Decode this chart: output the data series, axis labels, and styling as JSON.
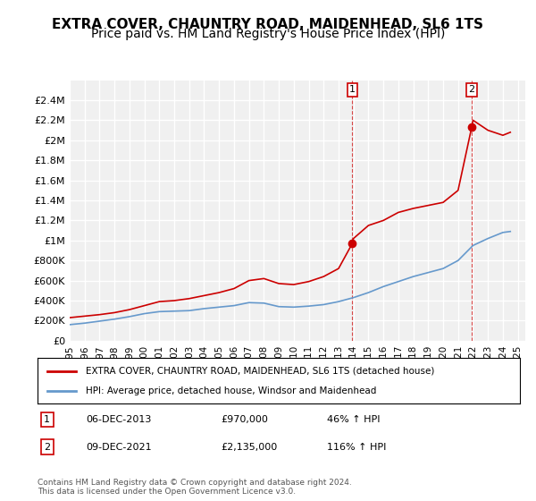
{
  "title": "EXTRA COVER, CHAUNTRY ROAD, MAIDENHEAD, SL6 1TS",
  "subtitle": "Price paid vs. HM Land Registry's House Price Index (HPI)",
  "title_fontsize": 11,
  "subtitle_fontsize": 10,
  "background_color": "#ffffff",
  "plot_bg_color": "#f0f0f0",
  "grid_color": "#ffffff",
  "ylim": [
    0,
    2600000
  ],
  "xlim": [
    1995,
    2025.5
  ],
  "yticks": [
    0,
    200000,
    400000,
    600000,
    800000,
    1000000,
    1200000,
    1400000,
    1600000,
    1800000,
    2000000,
    2200000,
    2400000
  ],
  "ytick_labels": [
    "£0",
    "£200K",
    "£400K",
    "£600K",
    "£800K",
    "£1M",
    "£1.2M",
    "£1.4M",
    "£1.6M",
    "£1.8M",
    "£2M",
    "£2.2M",
    "£2.4M"
  ],
  "xticks": [
    1995,
    1996,
    1997,
    1998,
    1999,
    2000,
    2001,
    2002,
    2003,
    2004,
    2005,
    2006,
    2007,
    2008,
    2009,
    2010,
    2011,
    2012,
    2013,
    2014,
    2015,
    2016,
    2017,
    2018,
    2019,
    2020,
    2021,
    2022,
    2023,
    2024,
    2025
  ],
  "red_line_color": "#cc0000",
  "blue_line_color": "#6699cc",
  "marker_color": "#cc0000",
  "sale1_x": 2013.92,
  "sale1_y": 970000,
  "sale2_x": 2021.92,
  "sale2_y": 2135000,
  "legend_label_red": "EXTRA COVER, CHAUNTRY ROAD, MAIDENHEAD, SL6 1TS (detached house)",
  "legend_label_blue": "HPI: Average price, detached house, Windsor and Maidenhead",
  "note1_label": "1",
  "note1_date": "06-DEC-2013",
  "note1_price": "£970,000",
  "note1_hpi": "46% ↑ HPI",
  "note2_label": "2",
  "note2_date": "09-DEC-2021",
  "note2_price": "£2,135,000",
  "note2_hpi": "116% ↑ HPI",
  "footer": "Contains HM Land Registry data © Crown copyright and database right 2024.\nThis data is licensed under the Open Government Licence v3.0.",
  "red_x": [
    1995,
    1996,
    1997,
    1998,
    1999,
    2000,
    2001,
    2002,
    2003,
    2004,
    2005,
    2006,
    2007,
    2008,
    2009,
    2010,
    2011,
    2012,
    2013,
    2013.92,
    2014,
    2015,
    2016,
    2017,
    2018,
    2019,
    2020,
    2021,
    2021.92,
    2022,
    2023,
    2024,
    2024.5
  ],
  "red_y": [
    230000,
    245000,
    260000,
    280000,
    310000,
    350000,
    390000,
    400000,
    420000,
    450000,
    480000,
    520000,
    600000,
    620000,
    570000,
    560000,
    590000,
    640000,
    720000,
    970000,
    1020000,
    1150000,
    1200000,
    1280000,
    1320000,
    1350000,
    1380000,
    1500000,
    2135000,
    2200000,
    2100000,
    2050000,
    2080000
  ],
  "blue_x": [
    1995,
    1996,
    1997,
    1998,
    1999,
    2000,
    2001,
    2002,
    2003,
    2004,
    2005,
    2006,
    2007,
    2008,
    2009,
    2010,
    2011,
    2012,
    2013,
    2014,
    2015,
    2016,
    2017,
    2018,
    2019,
    2020,
    2021,
    2022,
    2023,
    2024,
    2024.5
  ],
  "blue_y": [
    160000,
    175000,
    195000,
    215000,
    240000,
    270000,
    290000,
    295000,
    300000,
    320000,
    335000,
    350000,
    380000,
    375000,
    340000,
    335000,
    345000,
    360000,
    390000,
    430000,
    480000,
    540000,
    590000,
    640000,
    680000,
    720000,
    800000,
    950000,
    1020000,
    1080000,
    1090000
  ]
}
